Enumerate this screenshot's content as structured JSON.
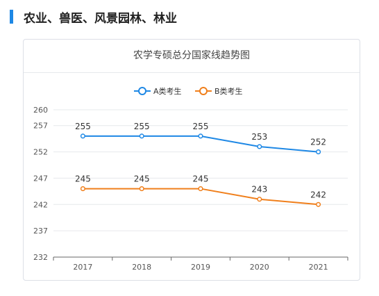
{
  "section": {
    "title": "农业、兽医、风景园林、林业"
  },
  "chart_data": {
    "type": "line",
    "title": "农学专硕总分国家线趋势图",
    "categories": [
      "2017",
      "2018",
      "2019",
      "2020",
      "2021"
    ],
    "series": [
      {
        "name": "A类考生",
        "values": [
          255,
          255,
          255,
          253,
          252
        ],
        "color": "#1e88e5"
      },
      {
        "name": "B类考生",
        "values": [
          245,
          245,
          245,
          243,
          242
        ],
        "color": "#f07f1b"
      }
    ],
    "yticks": [
      232,
      237,
      242,
      247,
      252,
      257,
      260
    ],
    "ylim": [
      232,
      260
    ],
    "grid": true,
    "legend": "top-center",
    "xlabel": "",
    "ylabel": ""
  }
}
